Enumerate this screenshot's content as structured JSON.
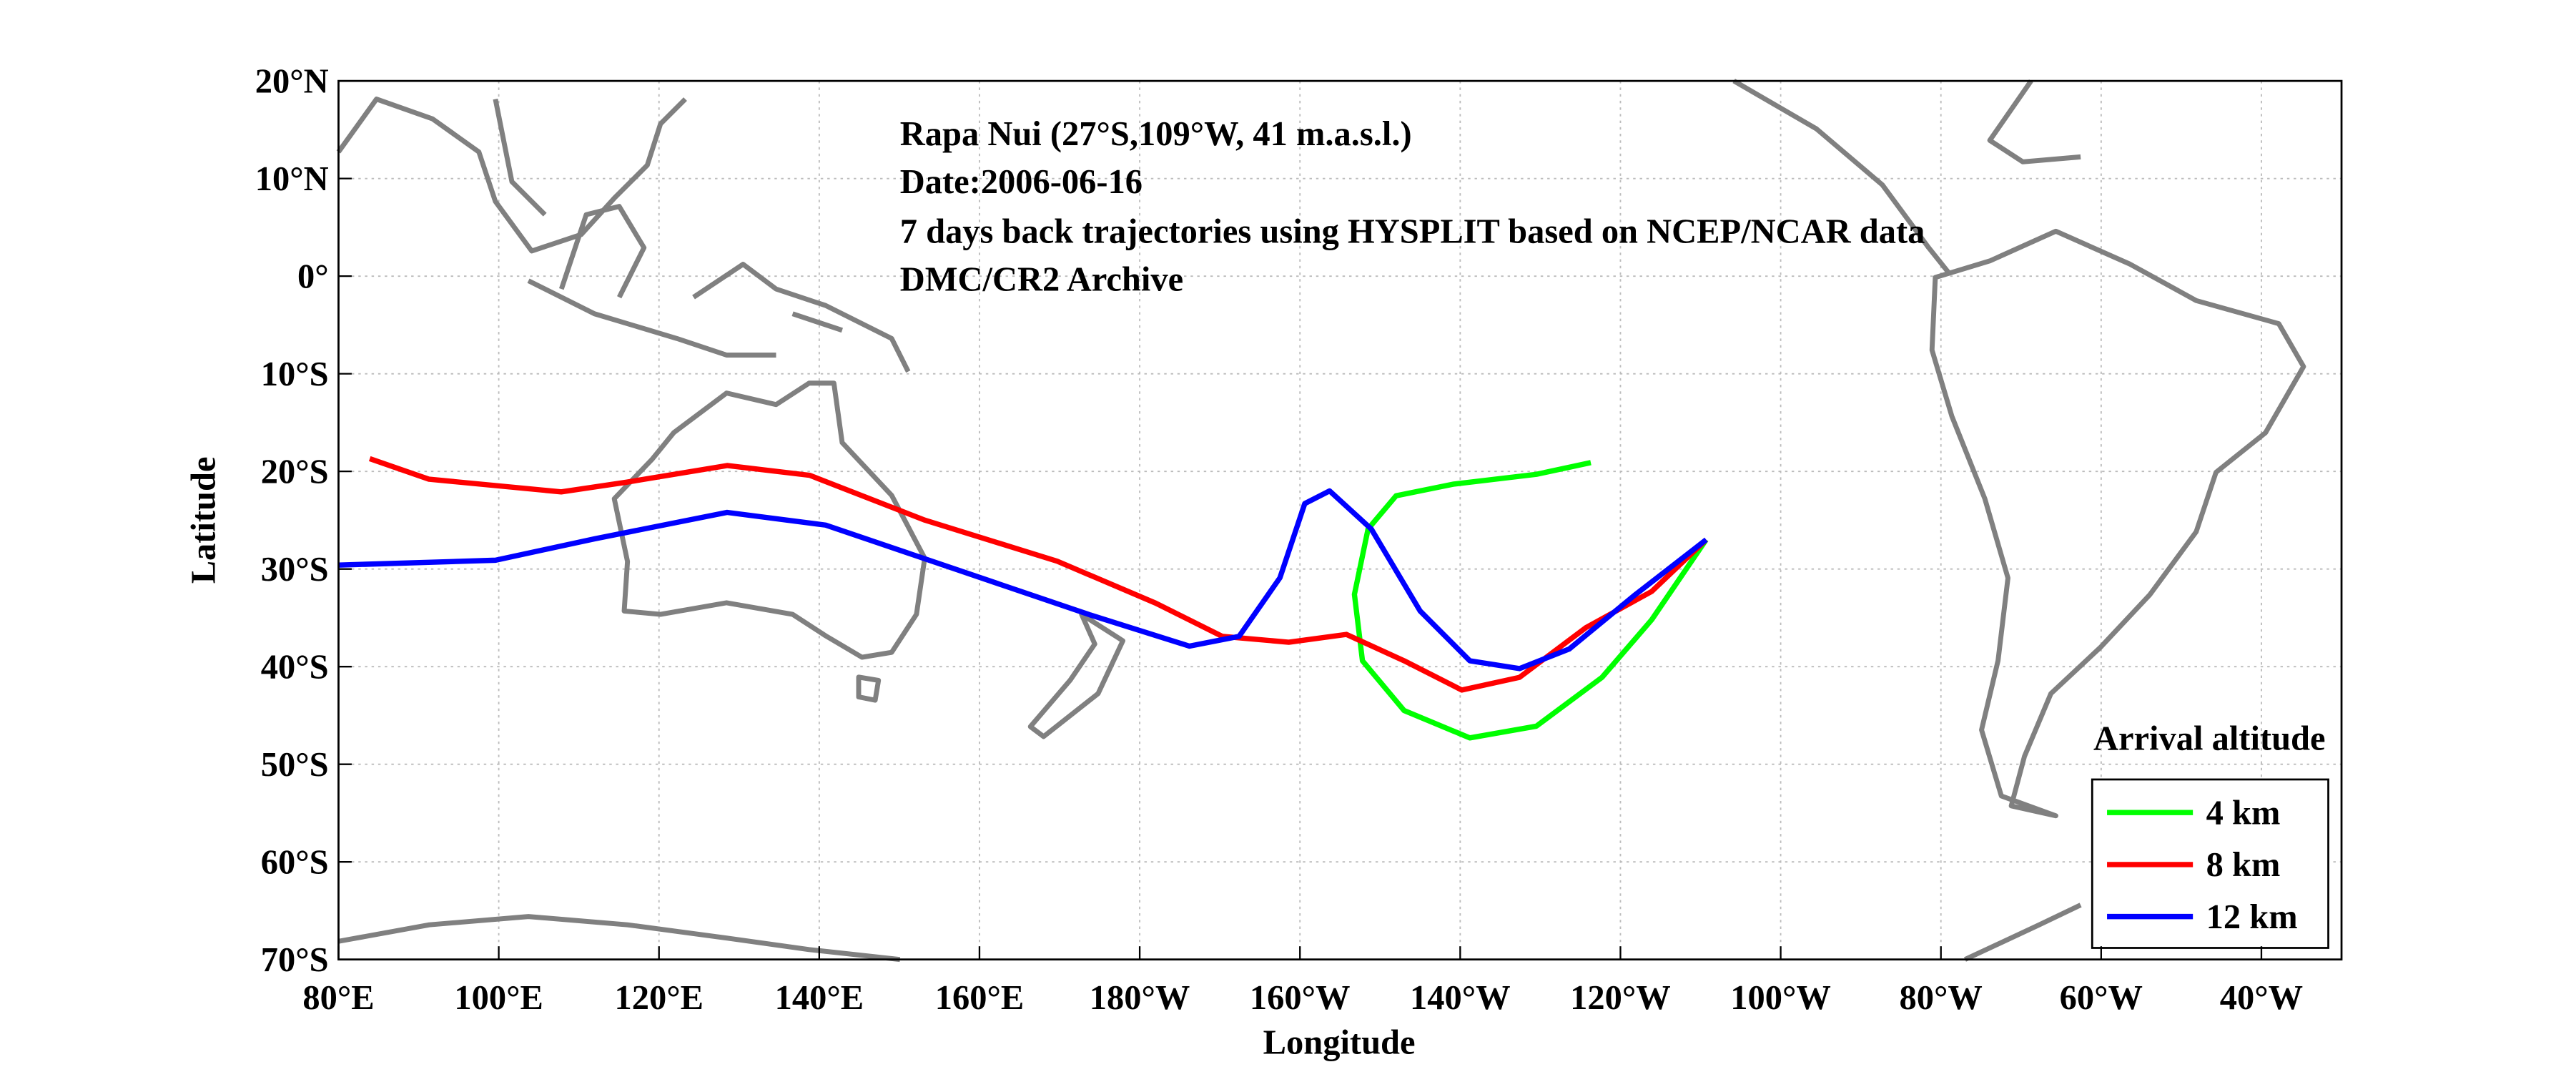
{
  "chart_data": {
    "type": "line",
    "annotations": [
      "Rapa Nui (27°S,109°W, 41 m.a.s.l.)",
      "Date:2006-06-16",
      "7 days back trajectories using HYSPLIT based on NCEP/NCAR data",
      "DMC/CR2 Archive"
    ],
    "xlabel": "Longitude",
    "ylabel": "Latitude",
    "legend_title": "Arrival altitude",
    "legend": "lower right",
    "grid": true,
    "xlim": [
      80,
      330
    ],
    "ylim": [
      -70,
      20
    ],
    "xticks": [
      {
        "value": 80,
        "label": "80°E"
      },
      {
        "value": 100,
        "label": "100°E"
      },
      {
        "value": 120,
        "label": "120°E"
      },
      {
        "value": 140,
        "label": "140°E"
      },
      {
        "value": 160,
        "label": "160°E"
      },
      {
        "value": 180,
        "label": "180°W"
      },
      {
        "value": 200,
        "label": "160°W"
      },
      {
        "value": 220,
        "label": "140°W"
      },
      {
        "value": 240,
        "label": "120°W"
      },
      {
        "value": 260,
        "label": "100°W"
      },
      {
        "value": 280,
        "label": "80°W"
      },
      {
        "value": 300,
        "label": "60°W"
      },
      {
        "value": 320,
        "label": "40°W"
      }
    ],
    "yticks": [
      {
        "value": 20,
        "label": "20°N"
      },
      {
        "value": 10,
        "label": "10°N"
      },
      {
        "value": 0,
        "label": "0°"
      },
      {
        "value": -10,
        "label": "10°S"
      },
      {
        "value": -20,
        "label": "20°S"
      },
      {
        "value": -30,
        "label": "30°S"
      },
      {
        "value": -40,
        "label": "40°S"
      },
      {
        "value": -50,
        "label": "50°S"
      },
      {
        "value": -60,
        "label": "60°S"
      },
      {
        "value": -70,
        "label": "70°S"
      }
    ],
    "series": [
      {
        "name": "4 km",
        "color": "#00ff00",
        "x": [
          236.3,
          229.5,
          219.2,
          212,
          208.5,
          206.8,
          207.8,
          213,
          221.2,
          229.5,
          237.7,
          243.9,
          250.7
        ],
        "values": [
          -19.1,
          -20.3,
          -21.3,
          -22.5,
          -25.9,
          -32.6,
          -39.4,
          -44.5,
          -47.3,
          -46.1,
          -41.1,
          -35.2,
          -27
        ]
      },
      {
        "name": "8 km",
        "color": "#ff0000",
        "x": [
          83.9,
          91.3,
          107.8,
          116,
          128.5,
          138.8,
          153.2,
          169.7,
          182,
          190.3,
          198.6,
          205.8,
          213,
          220.2,
          227.4,
          235.7,
          243.9,
          250.7
        ],
        "values": [
          -18.7,
          -20.8,
          -22.1,
          -21.1,
          -19.4,
          -20.4,
          -25,
          -29.2,
          -33.5,
          -36.9,
          -37.5,
          -36.7,
          -39.4,
          -42.4,
          -41.1,
          -36,
          -32.3,
          -27
        ]
      },
      {
        "name": "12 km",
        "color": "#0000ff",
        "x": [
          80,
          99.6,
          112,
          128.5,
          140.8,
          157.3,
          173.8,
          186.2,
          192.4,
          197.5,
          200.6,
          203.7,
          208.9,
          215,
          221.2,
          227.4,
          233.6,
          241.9,
          250.7
        ],
        "values": [
          -29.6,
          -29.1,
          -26.9,
          -24.2,
          -25.5,
          -30.1,
          -34.7,
          -37.9,
          -36.9,
          -30.9,
          -23.3,
          -22,
          -25.9,
          -34.3,
          -39.4,
          -40.2,
          -38.2,
          -32.6,
          -27
        ]
      }
    ]
  }
}
